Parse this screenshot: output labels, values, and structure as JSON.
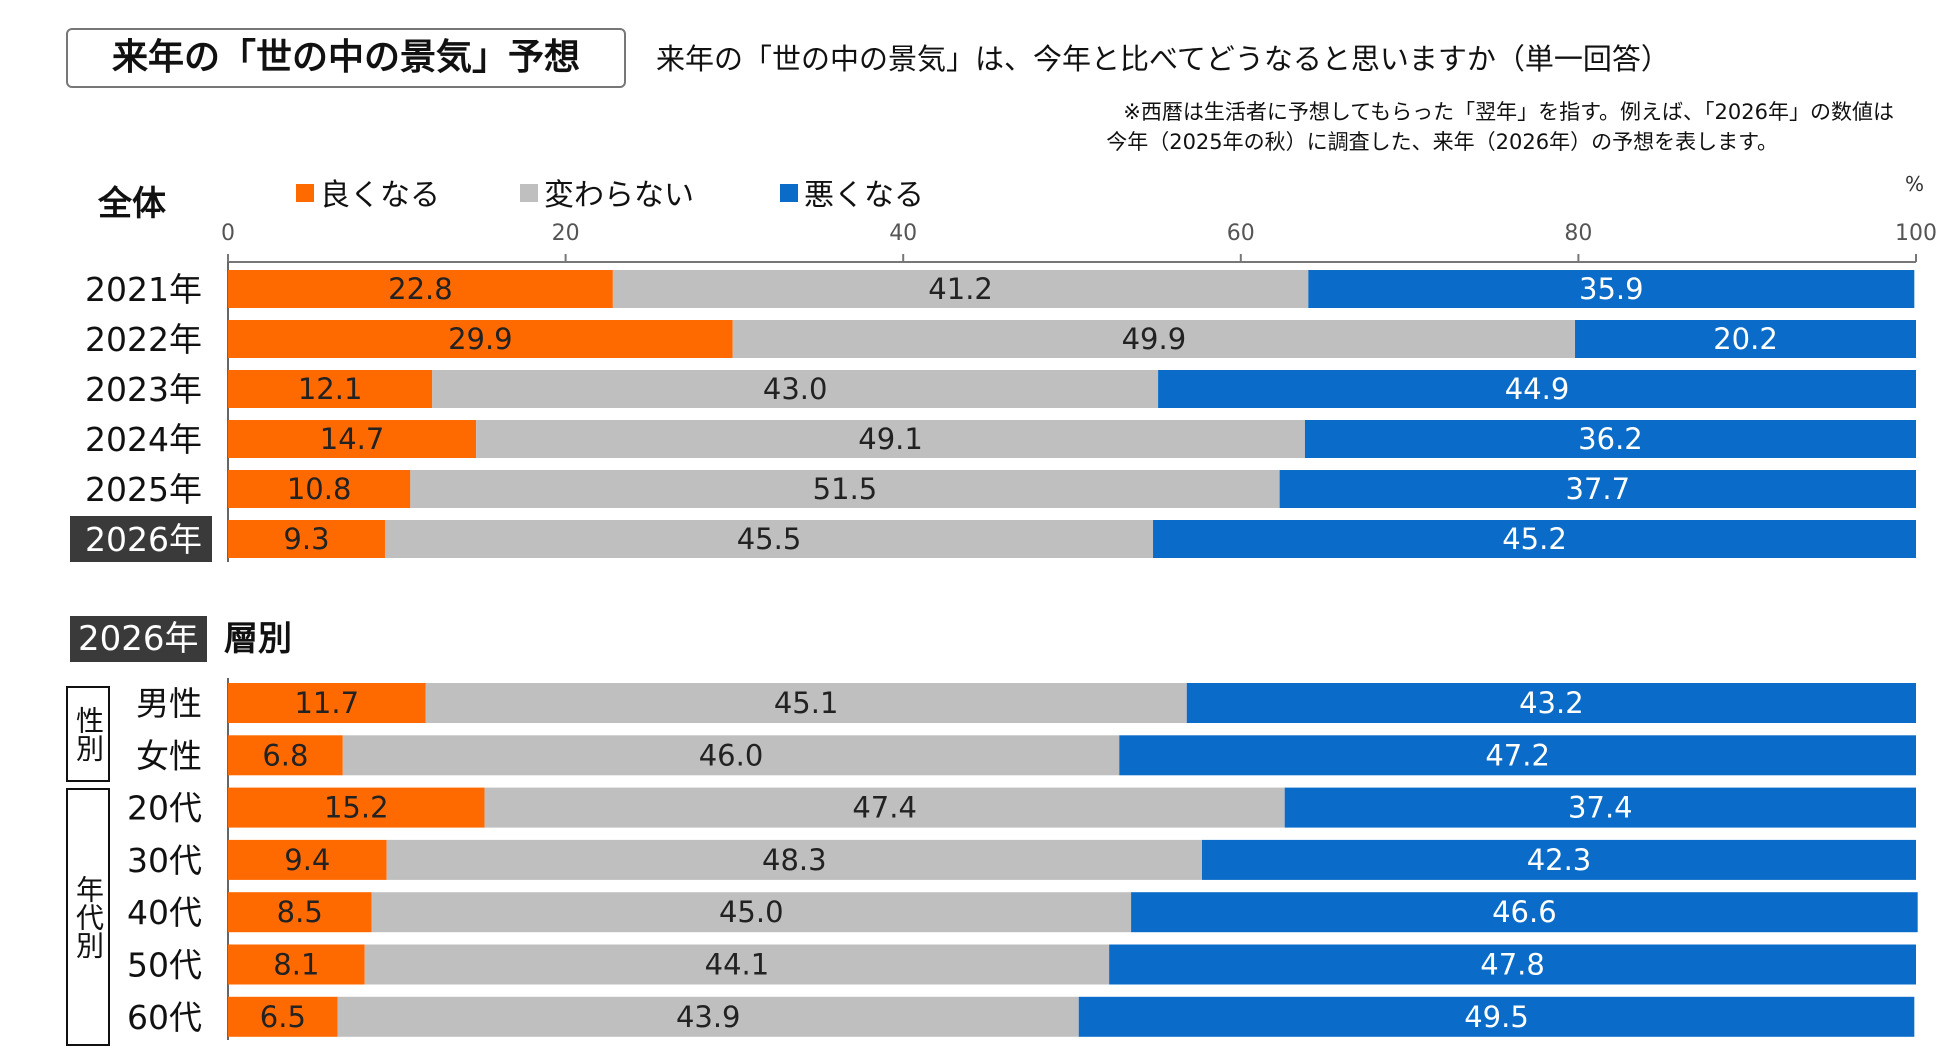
{
  "header": {
    "title": "来年の「世の中の景気」予想",
    "question": "来年の「世の中の景気」は、今年と比べてどうなると思いますか（単一回答）",
    "note_line1": "※西暦は生活者に予想してもらった「翌年」を指す。例えば、「2026年」の数値は",
    "note_line2": "今年（2025年の秋）に調査した、来年（2026年）の予想を表します。"
  },
  "section_overall": {
    "label": "全体"
  },
  "legend": [
    {
      "label": "良くなる",
      "color": "#FF6A00"
    },
    {
      "label": "変わらない",
      "color": "#BFBFBF"
    },
    {
      "label": "悪くなる",
      "color": "#0A6CC8"
    }
  ],
  "axis": {
    "unit": "%",
    "ticks": [
      "0",
      "20",
      "40",
      "60",
      "80",
      "100"
    ]
  },
  "section_segment": {
    "tag": "2026年",
    "title": "層別"
  },
  "groups": {
    "gender": "性別",
    "age": "年代別"
  },
  "chart_data": [
    {
      "type": "bar",
      "orientation": "horizontal",
      "stacked": true,
      "title": "全体",
      "xlim": [
        0,
        100
      ],
      "xlabel": "%",
      "categories": [
        "2021年",
        "2022年",
        "2023年",
        "2024年",
        "2025年",
        "2026年"
      ],
      "highlight_category": "2026年",
      "series": [
        {
          "name": "良くなる",
          "values": [
            22.8,
            29.9,
            12.1,
            14.7,
            10.8,
            9.3
          ]
        },
        {
          "name": "変わらない",
          "values": [
            41.2,
            49.9,
            43.0,
            49.1,
            51.5,
            45.5
          ]
        },
        {
          "name": "悪くなる",
          "values": [
            35.9,
            20.2,
            44.9,
            36.2,
            37.7,
            45.2
          ]
        }
      ]
    },
    {
      "type": "bar",
      "orientation": "horizontal",
      "stacked": true,
      "title": "2026年 層別",
      "xlim": [
        0,
        100
      ],
      "categories": [
        "男性",
        "女性",
        "20代",
        "30代",
        "40代",
        "50代",
        "60代"
      ],
      "series": [
        {
          "name": "良くなる",
          "values": [
            11.7,
            6.8,
            15.2,
            9.4,
            8.5,
            8.1,
            6.5
          ]
        },
        {
          "name": "変わらない",
          "values": [
            45.1,
            46.0,
            47.4,
            48.3,
            45.0,
            44.1,
            43.9
          ]
        },
        {
          "name": "悪くなる",
          "values": [
            43.2,
            47.2,
            37.4,
            42.3,
            46.6,
            47.8,
            49.5
          ]
        }
      ]
    }
  ]
}
